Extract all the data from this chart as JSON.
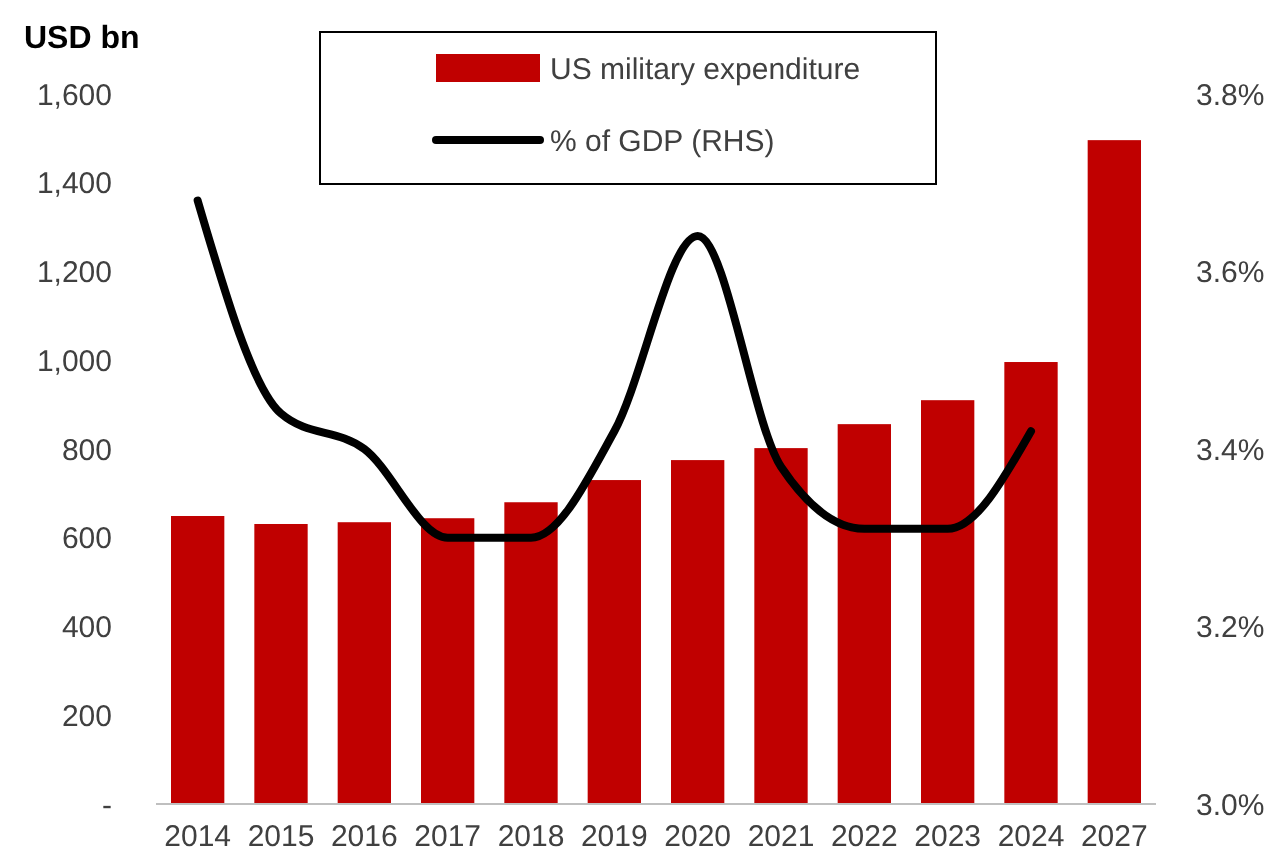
{
  "chart_data": {
    "type": "bar",
    "ylabel": "USD bn",
    "categories": [
      "2014",
      "2015",
      "2016",
      "2017",
      "2018",
      "2019",
      "2020",
      "2021",
      "2022",
      "2023",
      "2024",
      "2027"
    ],
    "series": [
      {
        "name": "US military expenditure",
        "color": "#c00000",
        "values": [
          649,
          631,
          635,
          644,
          680,
          730,
          775,
          802,
          856,
          910,
          996,
          1496
        ]
      },
      {
        "name": "% of GDP (RHS)",
        "type": "line",
        "axis": "y2",
        "color": "#000000",
        "values": [
          3.68,
          3.44,
          3.4,
          3.3,
          3.3,
          3.42,
          3.64,
          3.38,
          3.31,
          3.31,
          3.42,
          null
        ]
      }
    ],
    "ylim": [
      0,
      1600
    ],
    "yticks": [
      {
        "value": 0,
        "label": "-"
      },
      {
        "value": 200,
        "label": "200"
      },
      {
        "value": 400,
        "label": "400"
      },
      {
        "value": 600,
        "label": "600"
      },
      {
        "value": 800,
        "label": "800"
      },
      {
        "value": 1000,
        "label": "1,000"
      },
      {
        "value": 1200,
        "label": "1,200"
      },
      {
        "value": 1400,
        "label": "1,400"
      },
      {
        "value": 1600,
        "label": "1,600"
      }
    ],
    "y2lim": [
      3.0,
      3.8
    ],
    "y2ticks": [
      {
        "value": 3.0,
        "label": "3.0%"
      },
      {
        "value": 3.2,
        "label": "3.2%"
      },
      {
        "value": 3.4,
        "label": "3.4%"
      },
      {
        "value": 3.6,
        "label": "3.6%"
      },
      {
        "value": 3.8,
        "label": "3.8%"
      }
    ],
    "legend": "top",
    "grid": false,
    "marker": "none",
    "line_style": "solid"
  }
}
